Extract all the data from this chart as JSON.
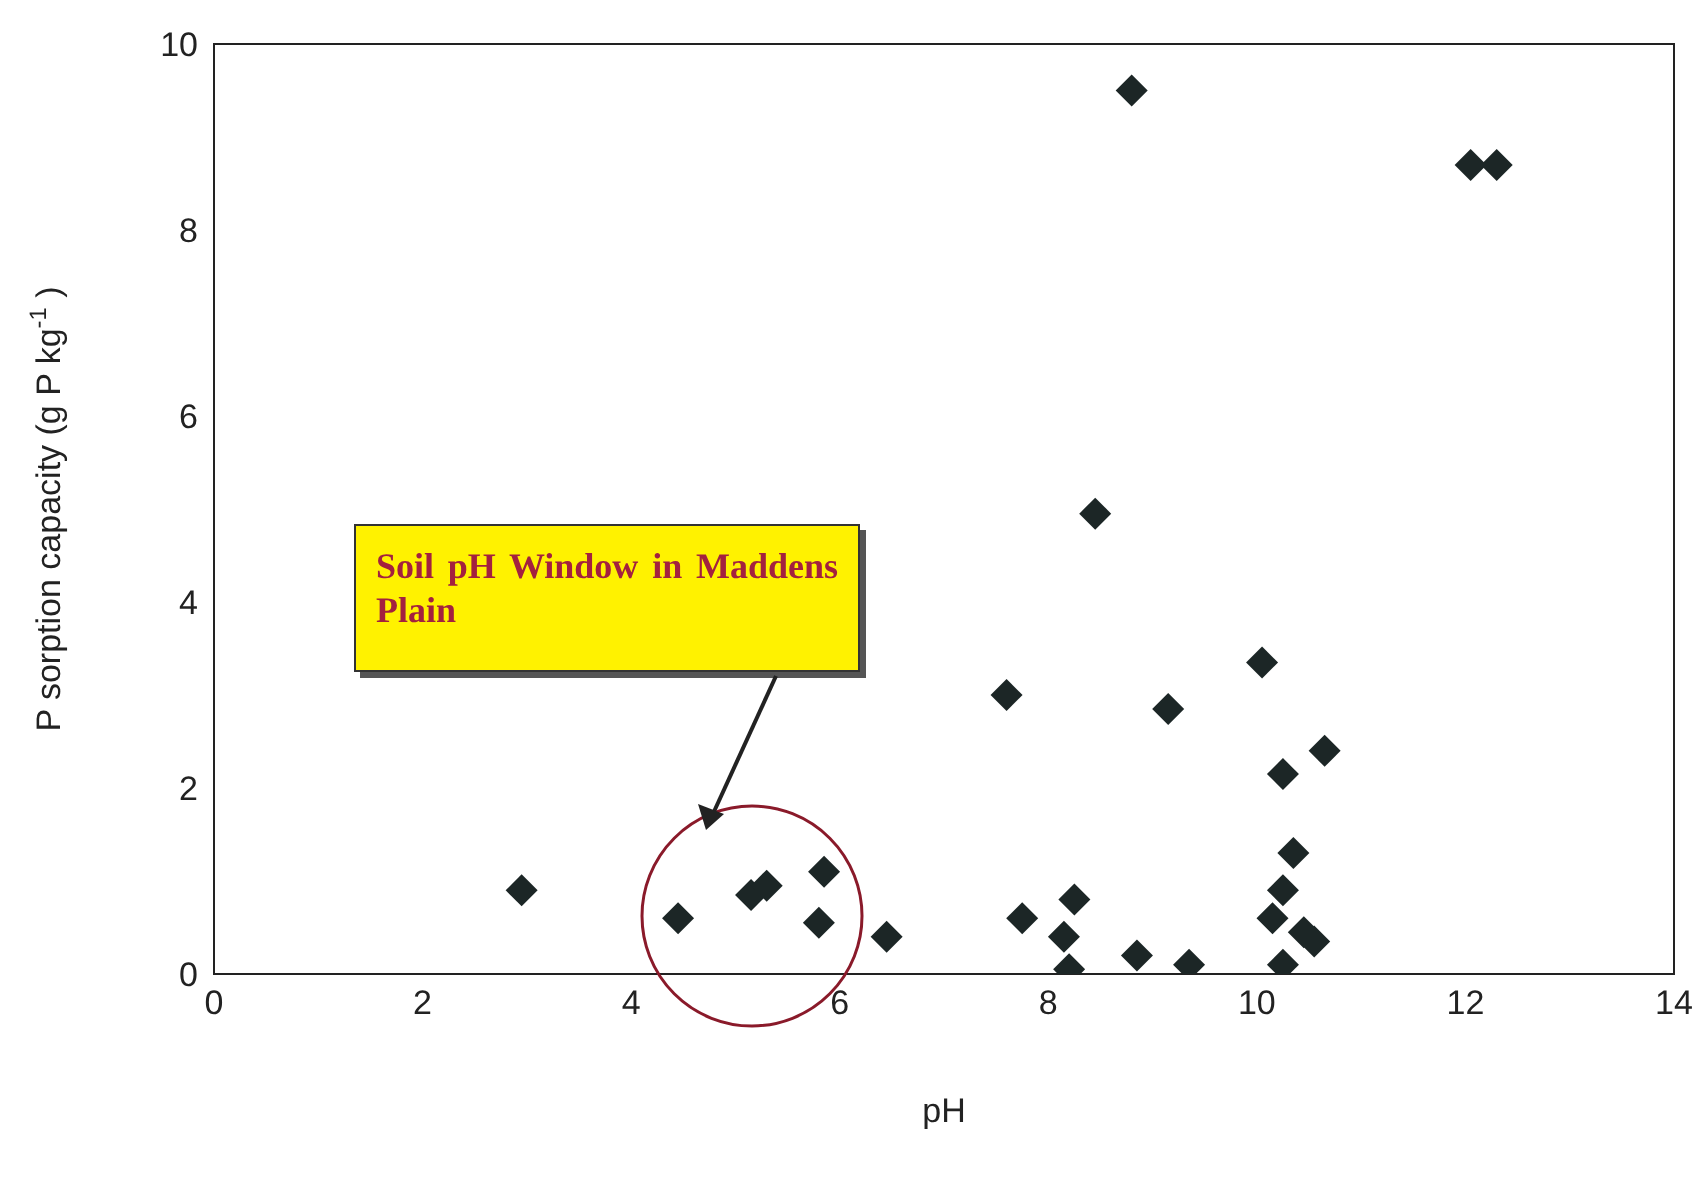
{
  "chart_data": {
    "type": "scatter",
    "xlabel": "pH",
    "ylabel": "P sorption capacity (g P kg$^{-1}$)",
    "xlim": [
      0,
      14
    ],
    "xticks": [
      0,
      2,
      4,
      6,
      8,
      10,
      12,
      14
    ],
    "ylim": [
      0,
      10
    ],
    "yticks": [
      0,
      2,
      4,
      6,
      8,
      10
    ],
    "grid": false,
    "marker": "diamond",
    "annotations": [
      "Soil pH Window in Maddens Plain"
    ],
    "series": [
      {
        "color": "#1c2626",
        "x": [
          2.95,
          4.45,
          5.15,
          5.3,
          5.85,
          5.8,
          6.45,
          7.6,
          7.75,
          8.25,
          8.15,
          8.2,
          8.45,
          8.85,
          8.8,
          9.15,
          9.35,
          10.05,
          10.25,
          10.65,
          10.35,
          10.25,
          10.15,
          10.45,
          10.55,
          10.25,
          12.05,
          12.3
        ],
        "values": [
          0.9,
          0.6,
          0.85,
          0.95,
          1.1,
          0.55,
          0.4,
          3.0,
          0.6,
          0.8,
          0.4,
          0.05,
          4.95,
          0.2,
          9.5,
          2.85,
          0.1,
          3.35,
          2.15,
          2.4,
          1.3,
          0.9,
          0.6,
          0.45,
          0.35,
          0.1,
          8.7,
          8.7
        ]
      }
    ]
  }
}
